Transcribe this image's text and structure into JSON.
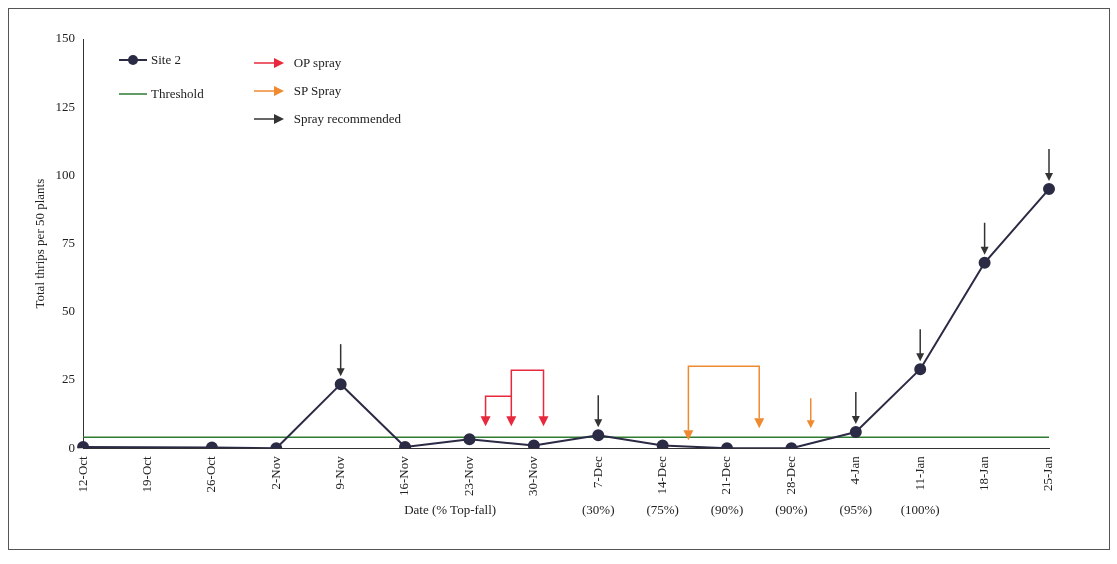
{
  "chart_data": {
    "type": "line",
    "xlabel": "Date (% Top-fall)",
    "ylabel": "Total thrips per 50 plants",
    "categories": [
      "12-Oct",
      "19-Oct",
      "26-Oct",
      "2-Nov",
      "9-Nov",
      "16-Nov",
      "23-Nov",
      "30-Nov",
      "7-Dec",
      "14-Dec",
      "21-Dec",
      "28-Dec",
      "4-Jan",
      "11-Jan",
      "18-Jan",
      "25-Jan"
    ],
    "series": [
      {
        "name": "Site 2",
        "color": "#2b2b45",
        "values": [
          0.5,
          null,
          0.3,
          0,
          23.5,
          0.5,
          3.3,
          1,
          4.8,
          1,
          0,
          0,
          6,
          29,
          68,
          95
        ]
      }
    ],
    "ref_lines": [
      {
        "axis": "y",
        "value": 4,
        "label": "Threshold",
        "color": "#2e7d32"
      }
    ],
    "ylim": [
      0,
      150
    ],
    "yticks": [
      0,
      25,
      50,
      75,
      100,
      125,
      150
    ],
    "grid": false,
    "legend": "top left",
    "marker": "circle",
    "line_style": "solid",
    "annotations": [
      "OP spray",
      "SP Spray",
      "Spray recommended",
      "(30%)",
      "(75%)",
      "(90%)",
      "(90%)",
      "(95%)",
      "(100%)"
    ]
  }
}
